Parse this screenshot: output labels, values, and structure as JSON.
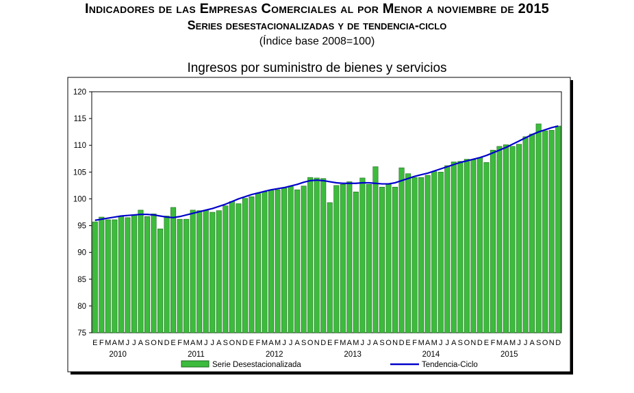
{
  "header": {
    "title": "Indicadores de las Empresas Comerciales al por Menor a noviembre de 2015",
    "subtitle": "Series desestacionalizadas y de tendencia-ciclo",
    "base": "(Índice base 2008=100)"
  },
  "colors": {
    "bar_fill": "#3dbb3d",
    "bar_stroke": "#1d6a1d",
    "trend_line": "#0000cc",
    "plot_bg": "#ffffff",
    "frame": "#000000"
  },
  "chart_data": {
    "type": "bar",
    "title": "Ingresos por suministro de bienes y servicios",
    "ylim": [
      75,
      120
    ],
    "yticks": [
      75,
      80,
      85,
      90,
      95,
      100,
      105,
      110,
      115,
      120
    ],
    "grid": false,
    "legend_placement": "bottom",
    "month_labels": [
      "E",
      "F",
      "M",
      "A",
      "M",
      "J",
      "J",
      "A",
      "S",
      "O",
      "N",
      "D"
    ],
    "years": [
      "2010",
      "2011",
      "2012",
      "2013",
      "2014",
      "2015"
    ],
    "series": [
      {
        "name": "Serie Desestacionalizada",
        "kind": "bar",
        "values": [
          95.7,
          96.6,
          96.1,
          96.1,
          96.7,
          96.5,
          97.0,
          97.9,
          96.7,
          97.2,
          94.4,
          96.8,
          98.4,
          96.2,
          96.2,
          97.9,
          97.8,
          97.9,
          97.5,
          97.8,
          98.7,
          99.5,
          99.1,
          100.1,
          100.4,
          101.0,
          101.3,
          101.6,
          101.7,
          102.0,
          102.3,
          101.7,
          102.4,
          104.0,
          103.9,
          103.8,
          99.3,
          102.5,
          102.7,
          103.2,
          101.3,
          103.9,
          102.7,
          106.0,
          102.2,
          102.7,
          102.2,
          105.8,
          104.7,
          104.0,
          104.0,
          104.4,
          105.1,
          105.0,
          106.2,
          106.9,
          107.0,
          107.4,
          107.3,
          107.7,
          106.8,
          109.1,
          109.8,
          110.1,
          109.8,
          110.2,
          111.6,
          112.1,
          114.0,
          112.7,
          112.8,
          113.6
        ]
      },
      {
        "name": "Tendencia-Ciclo",
        "kind": "line",
        "values": [
          96.0,
          96.2,
          96.4,
          96.6,
          96.8,
          96.9,
          97.0,
          97.1,
          97.1,
          97.0,
          96.8,
          96.6,
          96.5,
          96.7,
          97.0,
          97.3,
          97.6,
          97.9,
          98.2,
          98.6,
          99.0,
          99.5,
          100.0,
          100.4,
          100.8,
          101.1,
          101.4,
          101.7,
          101.9,
          102.1,
          102.4,
          102.7,
          103.1,
          103.4,
          103.5,
          103.4,
          103.2,
          103.0,
          102.9,
          102.9,
          102.9,
          103.0,
          103.0,
          102.9,
          102.8,
          102.8,
          103.0,
          103.4,
          103.8,
          104.2,
          104.5,
          104.8,
          105.2,
          105.6,
          106.0,
          106.4,
          106.8,
          107.1,
          107.4,
          107.7,
          108.1,
          108.6,
          109.1,
          109.6,
          110.2,
          110.8,
          111.4,
          112.0,
          112.5,
          112.9,
          113.3,
          113.6
        ]
      }
    ]
  }
}
